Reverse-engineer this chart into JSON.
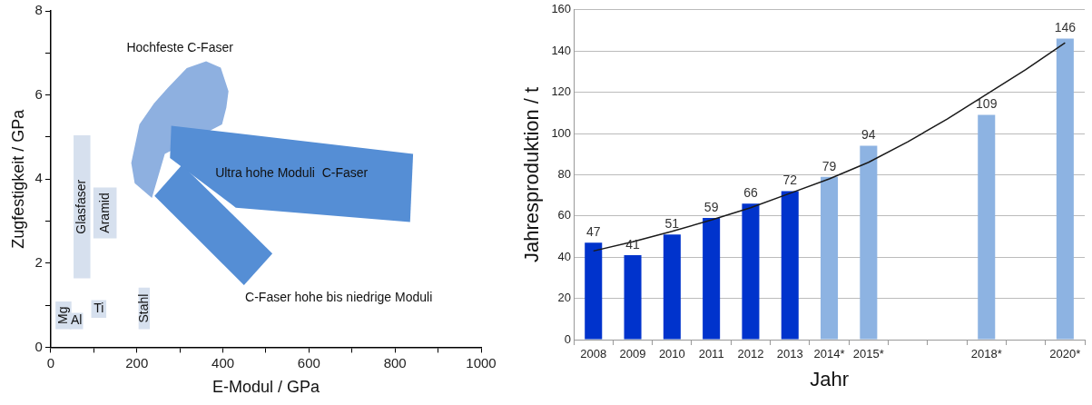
{
  "chart_data": [
    {
      "type": "area",
      "xlabel": "E-Modul / GPa",
      "ylabel": "Zugfestigkeit / GPa",
      "xlim": [
        0,
        1000
      ],
      "ylim": [
        0,
        8
      ],
      "xticks": [
        0,
        {
          "value": 100,
          "label": null
        },
        200,
        {
          "value": 300,
          "label": null
        },
        400,
        {
          "value": 500,
          "label": null
        },
        600,
        {
          "value": 700,
          "label": null
        },
        800,
        {
          "value": 900,
          "label": null
        },
        1000
      ],
      "yticks": [
        0,
        {
          "value": 1,
          "label": null
        },
        2,
        {
          "value": 3,
          "label": null
        },
        4,
        {
          "value": 5,
          "label": null
        },
        6,
        {
          "value": 7,
          "label": null
        },
        8
      ],
      "grid": false,
      "legend": false,
      "marker": "none",
      "series": [
        {
          "name": "Glasfaser",
          "color": "#d6e0ee",
          "x": [
            53,
            92,
            92,
            53,
            53
          ],
          "values": [
            5.04,
            5.04,
            1.64,
            1.64,
            5.04
          ]
        },
        {
          "name": "Aramid",
          "color": "#d6e0ee",
          "x": [
            99,
            153,
            153,
            99,
            99
          ],
          "values": [
            3.8,
            3.8,
            2.59,
            2.59,
            3.8
          ]
        },
        {
          "name": "Mg",
          "color": "#d6e0ee",
          "x": [
            11,
            48,
            48,
            11,
            11
          ],
          "values": [
            1.09,
            1.09,
            0.43,
            0.43,
            1.09
          ]
        },
        {
          "name": "Al",
          "color": "#d6e0ee",
          "x": [
            44,
            75,
            75,
            44,
            44
          ],
          "values": [
            0.82,
            0.82,
            0.43,
            0.43,
            0.82
          ]
        },
        {
          "name": "Ti",
          "color": "#d6e0ee",
          "x": [
            94,
            129,
            129,
            94,
            94
          ],
          "values": [
            1.12,
            1.12,
            0.7,
            0.7,
            1.12
          ]
        },
        {
          "name": "Stahl",
          "color": "#d6e0ee",
          "x": [
            204,
            230,
            230,
            204,
            204
          ],
          "values": [
            1.42,
            1.42,
            0.43,
            0.43,
            1.42
          ]
        },
        {
          "name": "Hochfeste C-Faser",
          "color": "#8eb0e0",
          "x": [
            361,
            395,
            413,
            408,
            398,
            265,
            235,
            195,
            187,
            206,
            240,
            272,
            316,
            361
          ],
          "values": [
            6.8,
            6.65,
            6.09,
            5.7,
            5.3,
            4.6,
            3.55,
            3.9,
            4.38,
            5.3,
            5.8,
            6.17,
            6.64,
            6.8
          ]
        },
        {
          "name": "Ultra hohe Moduli  C-Faser",
          "color": "#558ed5",
          "x": [
            280,
            842,
            835,
            430,
            277,
            280
          ],
          "values": [
            5.27,
            4.6,
            2.98,
            3.32,
            4.5,
            5.27
          ]
        },
        {
          "name": "C-Faser hohe bis niedrige Moduli",
          "color": "#558ed5",
          "x": [
            305,
            515,
            449,
            241,
            305
          ],
          "values": [
            4.34,
            2.23,
            1.48,
            3.6,
            4.34
          ]
        }
      ]
    },
    {
      "type": "bar",
      "xlabel": "Jahr",
      "ylabel": "Jahresproduktion / t",
      "ylim": [
        0,
        160
      ],
      "yticks": [
        0,
        20,
        40,
        60,
        80,
        100,
        120,
        140,
        160
      ],
      "grid": "y",
      "legend": false,
      "categories": [
        "2008",
        "2009",
        "2010",
        "2011",
        "2012",
        "2013",
        "2014*",
        "2015*",
        null,
        null,
        "2018*",
        null,
        "2020*"
      ],
      "series": [
        {
          "values": [
            47,
            41,
            51,
            59,
            66,
            72,
            79,
            94,
            null,
            null,
            109,
            null,
            146
          ],
          "value_labels": [
            "47",
            "41",
            "51",
            "59",
            "66",
            "72",
            "79",
            "94",
            null,
            null,
            "109",
            null,
            "146"
          ],
          "colors": [
            "#0033cc",
            "#0033cc",
            "#0033cc",
            "#0033cc",
            "#0033cc",
            "#0033cc",
            "#8db3e2",
            "#8db3e2",
            "#8db3e2",
            "#8db3e2",
            "#8db3e2",
            "#8db3e2",
            "#8db3e2"
          ]
        },
        {
          "type": "line",
          "color": "#1a1a1a",
          "marker": "none",
          "values": [
            43,
            47.5,
            52.5,
            58,
            64,
            71,
            78,
            86,
            96,
            107,
            119,
            131,
            144
          ]
        }
      ]
    }
  ]
}
